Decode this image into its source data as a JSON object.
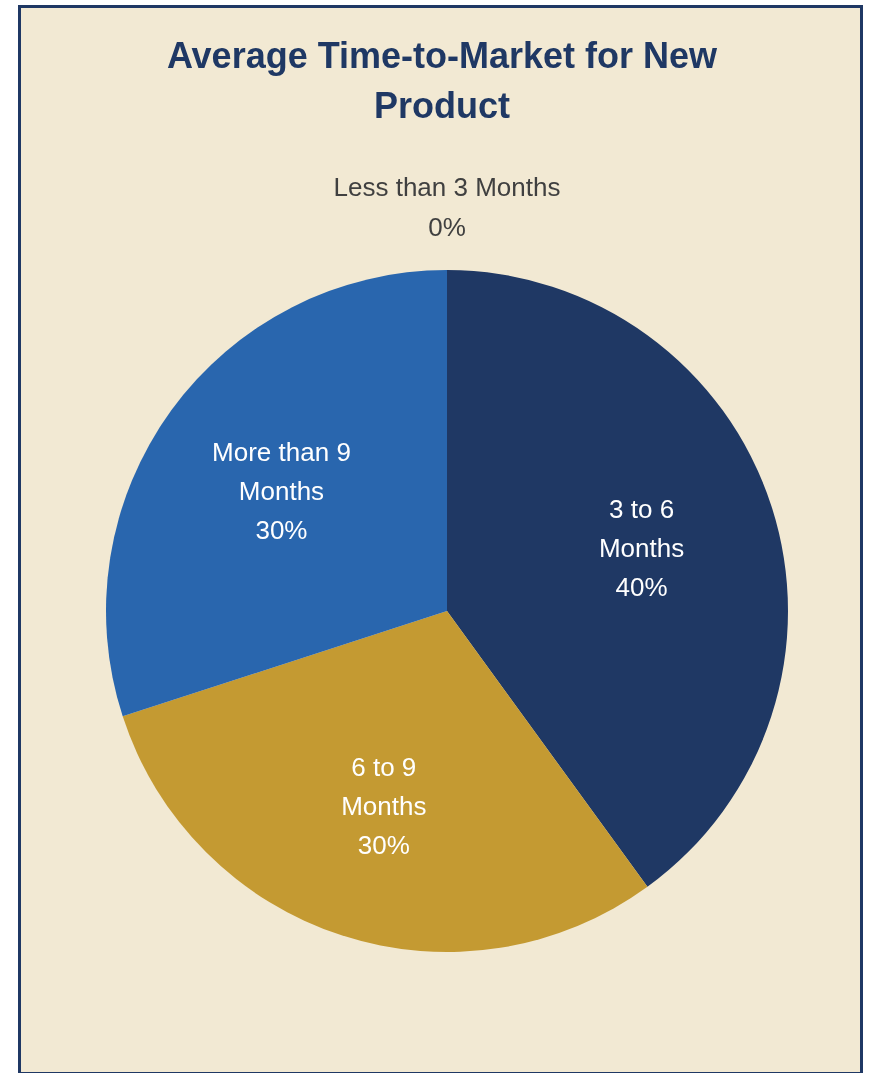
{
  "chart_data": {
    "type": "pie",
    "title": "Average Time-to-Market for New Product",
    "categories": [
      "Less than 3 Months",
      "3 to 6 Months",
      "6 to 9 Months",
      "More than 9 Months"
    ],
    "values": [
      0,
      40,
      30,
      30
    ],
    "value_labels": [
      "0%",
      "40%",
      "30%",
      "30%"
    ],
    "colors": [
      "#7f7f7f",
      "#1f3864",
      "#c49a32",
      "#2966ae"
    ],
    "legend": false
  }
}
